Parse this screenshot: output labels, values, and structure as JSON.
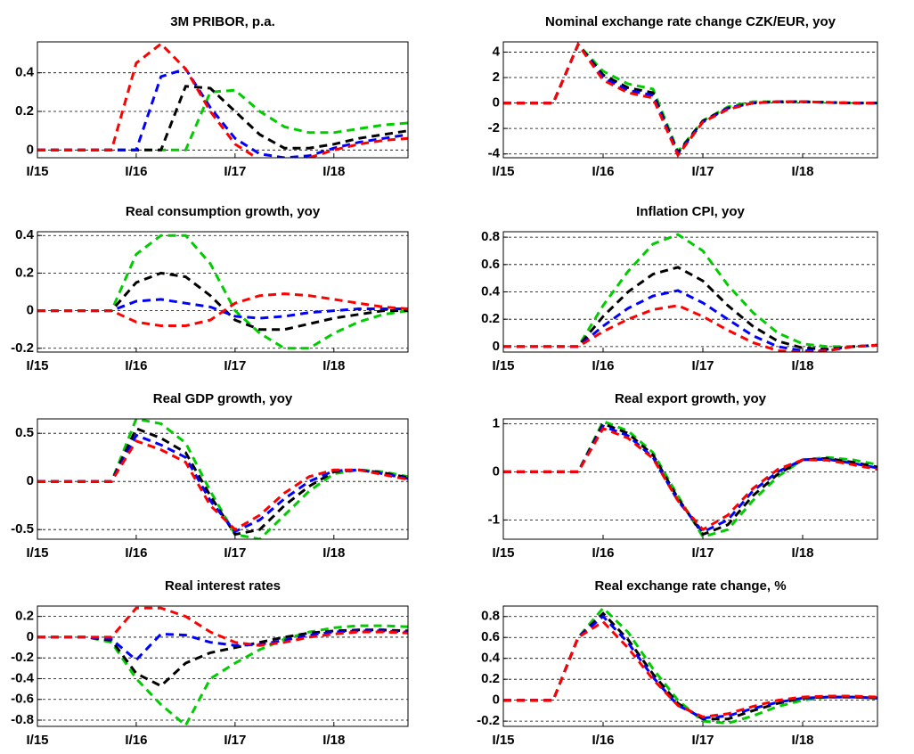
{
  "chart_data": [
    {
      "type": "line",
      "title": "3M PRIBOR, p.a.",
      "categories": [
        "I/15",
        null,
        null,
        null,
        "I/16",
        null,
        null,
        null,
        "I/17",
        null,
        null,
        null,
        "I/18",
        null,
        null,
        null
      ],
      "series": [
        {
          "color": "#ff0000",
          "values": [
            0,
            0,
            0,
            0,
            0.45,
            0.55,
            0.42,
            0.2,
            0.03,
            -0.05,
            -0.07,
            -0.04,
            0,
            0.03,
            0.05,
            0.06
          ]
        },
        {
          "color": "#0000ff",
          "values": [
            0,
            0,
            0,
            0,
            0,
            0.38,
            0.42,
            0.22,
            0.06,
            -0.02,
            -0.04,
            -0.03,
            0.01,
            0.04,
            0.06,
            0.08
          ]
        },
        {
          "color": "#000000",
          "values": [
            0,
            0,
            0,
            0,
            0,
            0,
            0.33,
            0.32,
            0.2,
            0.08,
            0.01,
            0.01,
            0.03,
            0.06,
            0.08,
            0.1
          ]
        },
        {
          "color": "#00cc00",
          "values": [
            0,
            0,
            0,
            0,
            0,
            0,
            0,
            0.3,
            0.31,
            0.2,
            0.12,
            0.09,
            0.09,
            0.11,
            0.13,
            0.14
          ]
        }
      ],
      "ylim": [
        -0.04,
        0.56
      ],
      "yticks": [
        0,
        0.2,
        0.4
      ],
      "grid": true
    },
    {
      "type": "line",
      "title": "Nominal exchange rate change CZK/EUR, yoy",
      "categories": [
        "I/15",
        null,
        null,
        null,
        "I/16",
        null,
        null,
        null,
        "I/17",
        null,
        null,
        null,
        "I/18",
        null,
        null,
        null
      ],
      "series": [
        {
          "color": "#ff0000",
          "values": [
            0,
            0,
            0,
            4.6,
            1.8,
            0.8,
            0.4,
            -4.1,
            -1.5,
            -0.5,
            0,
            0.1,
            0.1,
            0.05,
            0,
            0
          ]
        },
        {
          "color": "#0000ff",
          "values": [
            0,
            0,
            0,
            4.6,
            2,
            1,
            0.6,
            -4,
            -1.5,
            -0.4,
            0,
            0.1,
            0.1,
            0.05,
            0,
            0
          ]
        },
        {
          "color": "#000000",
          "values": [
            0,
            0,
            0,
            4.6,
            2.2,
            1.2,
            0.8,
            -3.9,
            -1.4,
            -0.4,
            0,
            0.1,
            0.1,
            0.05,
            0,
            0
          ]
        },
        {
          "color": "#00cc00",
          "values": [
            0,
            0,
            0,
            4.6,
            2.5,
            1.5,
            1.1,
            -3.8,
            -1.4,
            -0.3,
            0.1,
            0.1,
            0.1,
            0.05,
            0,
            0
          ]
        }
      ],
      "ylim": [
        -4.3,
        4.8
      ],
      "yticks": [
        -4,
        -2,
        0,
        2,
        4
      ],
      "grid": true
    },
    {
      "type": "line",
      "title": "Real consumption growth, yoy",
      "categories": [
        "I/15",
        null,
        null,
        null,
        "I/16",
        null,
        null,
        null,
        "I/17",
        null,
        null,
        null,
        "I/18",
        null,
        null,
        null
      ],
      "series": [
        {
          "color": "#ff0000",
          "values": [
            0,
            0,
            0,
            0,
            -0.06,
            -0.08,
            -0.08,
            -0.05,
            0.04,
            0.08,
            0.09,
            0.08,
            0.06,
            0.04,
            0.02,
            0.01
          ]
        },
        {
          "color": "#0000ff",
          "values": [
            0,
            0,
            0,
            0,
            0.05,
            0.06,
            0.04,
            0.02,
            -0.03,
            -0.04,
            -0.03,
            -0.01,
            0,
            0.01,
            0.01,
            0.01
          ]
        },
        {
          "color": "#000000",
          "values": [
            0,
            0,
            0,
            0,
            0.15,
            0.2,
            0.18,
            0.08,
            -0.05,
            -0.1,
            -0.1,
            -0.07,
            -0.04,
            -0.02,
            0,
            0
          ]
        },
        {
          "color": "#00cc00",
          "values": [
            0,
            0,
            0,
            0,
            0.3,
            0.4,
            0.4,
            0.25,
            0,
            -0.12,
            -0.2,
            -0.2,
            -0.12,
            -0.06,
            -0.02,
            0
          ]
        }
      ],
      "ylim": [
        -0.22,
        0.42
      ],
      "yticks": [
        -0.2,
        0,
        0.2,
        0.4
      ],
      "grid": true
    },
    {
      "type": "line",
      "title": "Inflation CPI, yoy",
      "categories": [
        "I/15",
        null,
        null,
        null,
        "I/16",
        null,
        null,
        null,
        "I/17",
        null,
        null,
        null,
        "I/18",
        null,
        null,
        null
      ],
      "series": [
        {
          "color": "#ff0000",
          "values": [
            0,
            0,
            0,
            0,
            0.11,
            0.2,
            0.27,
            0.3,
            0.22,
            0.12,
            0.03,
            -0.03,
            -0.04,
            -0.03,
            0,
            0.01
          ]
        },
        {
          "color": "#0000ff",
          "values": [
            0,
            0,
            0,
            0,
            0.15,
            0.28,
            0.37,
            0.41,
            0.32,
            0.2,
            0.08,
            0,
            -0.03,
            -0.03,
            0,
            0.01
          ]
        },
        {
          "color": "#000000",
          "values": [
            0,
            0,
            0,
            0,
            0.22,
            0.4,
            0.53,
            0.58,
            0.48,
            0.3,
            0.15,
            0.04,
            -0.01,
            -0.02,
            0,
            0.01
          ]
        },
        {
          "color": "#00cc00",
          "values": [
            0,
            0,
            0,
            0,
            0.3,
            0.55,
            0.75,
            0.82,
            0.7,
            0.45,
            0.25,
            0.1,
            0.02,
            0,
            0,
            0.01
          ]
        }
      ],
      "ylim": [
        -0.04,
        0.84
      ],
      "yticks": [
        0,
        0.2,
        0.4,
        0.6,
        0.8
      ],
      "grid": true
    },
    {
      "type": "line",
      "title": "Real GDP growth, yoy",
      "categories": [
        "I/15",
        null,
        null,
        null,
        "I/16",
        null,
        null,
        null,
        "I/17",
        null,
        null,
        null,
        "I/18",
        null,
        null,
        null
      ],
      "series": [
        {
          "color": "#ff0000",
          "values": [
            0,
            0,
            0,
            0,
            0.42,
            0.33,
            0.2,
            -0.25,
            -0.5,
            -0.35,
            -0.12,
            0.05,
            0.12,
            0.12,
            0.07,
            0.02
          ]
        },
        {
          "color": "#0000ff",
          "values": [
            0,
            0,
            0,
            0,
            0.48,
            0.38,
            0.25,
            -0.2,
            -0.52,
            -0.4,
            -0.18,
            0,
            0.11,
            0.12,
            0.08,
            0.03
          ]
        },
        {
          "color": "#000000",
          "values": [
            0,
            0,
            0,
            0,
            0.55,
            0.45,
            0.3,
            -0.15,
            -0.55,
            -0.5,
            -0.25,
            -0.05,
            0.1,
            0.12,
            0.09,
            0.04
          ]
        },
        {
          "color": "#00cc00",
          "values": [
            0,
            0,
            0,
            0,
            0.65,
            0.6,
            0.4,
            -0.1,
            -0.55,
            -0.6,
            -0.35,
            -0.1,
            0.08,
            0.12,
            0.1,
            0.05
          ]
        }
      ],
      "ylim": [
        -0.6,
        0.65
      ],
      "yticks": [
        -0.5,
        0,
        0.5
      ],
      "grid": true
    },
    {
      "type": "line",
      "title": "Real export growth, yoy",
      "categories": [
        "I/15",
        null,
        null,
        null,
        "I/16",
        null,
        null,
        null,
        "I/17",
        null,
        null,
        null,
        "I/18",
        null,
        null,
        null
      ],
      "series": [
        {
          "color": "#ff0000",
          "values": [
            0,
            0,
            0,
            0,
            0.9,
            0.7,
            0.28,
            -0.6,
            -1.2,
            -0.9,
            -0.35,
            0.05,
            0.25,
            0.24,
            0.15,
            0.05
          ]
        },
        {
          "color": "#0000ff",
          "values": [
            0,
            0,
            0,
            0,
            0.95,
            0.75,
            0.3,
            -0.6,
            -1.25,
            -1,
            -0.4,
            0,
            0.25,
            0.26,
            0.18,
            0.08
          ]
        },
        {
          "color": "#000000",
          "values": [
            0,
            0,
            0,
            0,
            1,
            0.8,
            0.35,
            -0.55,
            -1.3,
            -1.1,
            -0.5,
            -0.05,
            0.25,
            0.28,
            0.2,
            0.1
          ]
        },
        {
          "color": "#00cc00",
          "values": [
            0,
            0,
            0,
            0,
            1.05,
            0.85,
            0.4,
            -0.5,
            -1.35,
            -1.2,
            -0.6,
            -0.1,
            0.25,
            0.3,
            0.25,
            0.15
          ]
        }
      ],
      "ylim": [
        -1.4,
        1.1
      ],
      "yticks": [
        -1,
        0,
        1
      ],
      "grid": true
    },
    {
      "type": "line",
      "title": "Real interest rates",
      "categories": [
        "I/15",
        null,
        null,
        null,
        "I/16",
        null,
        null,
        null,
        "I/17",
        null,
        null,
        null,
        "I/18",
        null,
        null,
        null
      ],
      "series": [
        {
          "color": "#ff0000",
          "values": [
            0,
            0,
            0,
            0,
            0.28,
            0.28,
            0.2,
            0.05,
            -0.05,
            -0.08,
            -0.05,
            0,
            0.03,
            0.05,
            0.05,
            0.04
          ]
        },
        {
          "color": "#0000ff",
          "values": [
            0,
            0,
            0,
            -0.02,
            -0.22,
            0.03,
            0.02,
            -0.05,
            -0.08,
            -0.07,
            -0.03,
            0.02,
            0.05,
            0.06,
            0.06,
            0.05
          ]
        },
        {
          "color": "#000000",
          "values": [
            0,
            0,
            0,
            -0.03,
            -0.35,
            -0.47,
            -0.25,
            -0.15,
            -0.1,
            -0.05,
            0,
            0.04,
            0.06,
            0.07,
            0.07,
            0.06
          ]
        },
        {
          "color": "#00cc00",
          "values": [
            0,
            0,
            0,
            -0.05,
            -0.4,
            -0.65,
            -0.85,
            -0.4,
            -0.25,
            -0.12,
            -0.02,
            0.05,
            0.09,
            0.11,
            0.11,
            0.1
          ]
        }
      ],
      "ylim": [
        -0.86,
        0.3
      ],
      "yticks": [
        -0.8,
        -0.6,
        -0.4,
        -0.2,
        0,
        0.2
      ],
      "grid": true
    },
    {
      "type": "line",
      "title": "Real exchange rate change, %",
      "categories": [
        "I/15",
        null,
        null,
        null,
        "I/16",
        null,
        null,
        null,
        "I/17",
        null,
        null,
        null,
        "I/18",
        null,
        null,
        null
      ],
      "series": [
        {
          "color": "#ff0000",
          "values": [
            0,
            0,
            0,
            0.6,
            0.75,
            0.5,
            0.2,
            -0.05,
            -0.16,
            -0.13,
            -0.06,
            0,
            0.03,
            0.04,
            0.04,
            0.03
          ]
        },
        {
          "color": "#0000ff",
          "values": [
            0,
            0,
            0,
            0.6,
            0.8,
            0.55,
            0.22,
            -0.05,
            -0.17,
            -0.15,
            -0.08,
            -0.02,
            0.02,
            0.03,
            0.03,
            0.02
          ]
        },
        {
          "color": "#000000",
          "values": [
            0,
            0,
            0,
            0.6,
            0.83,
            0.58,
            0.25,
            -0.03,
            -0.18,
            -0.18,
            -0.1,
            -0.03,
            0.02,
            0.03,
            0.03,
            0.02
          ]
        },
        {
          "color": "#00cc00",
          "values": [
            0,
            0,
            0,
            0.6,
            0.88,
            0.65,
            0.3,
            0,
            -0.2,
            -0.22,
            -0.15,
            -0.06,
            0,
            0.03,
            0.03,
            0.02
          ]
        }
      ],
      "ylim": [
        -0.25,
        0.9
      ],
      "yticks": [
        -0.2,
        0,
        0.2,
        0.4,
        0.6,
        0.8
      ],
      "grid": true
    }
  ]
}
